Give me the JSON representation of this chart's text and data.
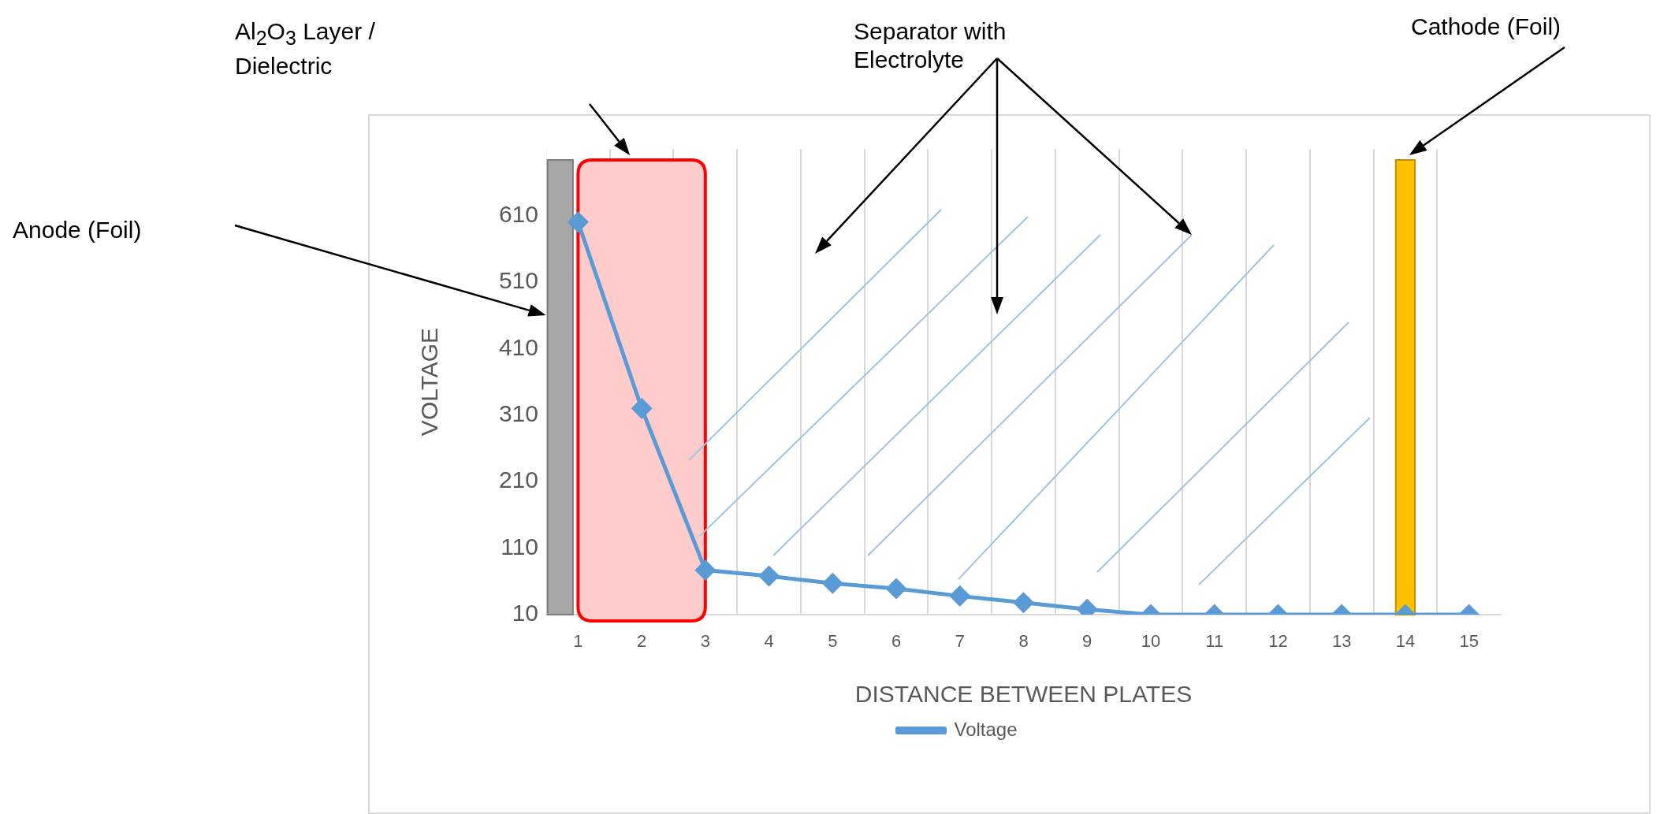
{
  "chart_data": {
    "type": "line",
    "xlabel": "DISTANCE BETWEEN PLATES",
    "ylabel": "VOLTAGE",
    "x": [
      1,
      2,
      3,
      4,
      5,
      6,
      7,
      8,
      9,
      10,
      11,
      12,
      13,
      14,
      15
    ],
    "series": [
      {
        "name": "Voltage",
        "color": "#5b9bd5",
        "values": [
          600,
          320,
          77,
          68,
          57,
          49,
          38,
          28,
          18,
          10,
          10,
          10,
          10,
          10,
          10
        ]
      }
    ],
    "xlim": [
      0.5,
      15.5
    ],
    "xticks": [
      1,
      {
        "value": 1.5,
        "label": null
      },
      2,
      {
        "value": 2.5,
        "label": null
      },
      3,
      {
        "value": 3.5,
        "label": null
      },
      4,
      {
        "value": 4.5,
        "label": null
      },
      5,
      {
        "value": 5.5,
        "label": null
      },
      6,
      {
        "value": 6.5,
        "label": null
      },
      7,
      {
        "value": 7.5,
        "label": null
      },
      8,
      {
        "value": 8.5,
        "label": null
      },
      9,
      {
        "value": 9.5,
        "label": null
      },
      10,
      {
        "value": 10.5,
        "label": null
      },
      11,
      {
        "value": 11.5,
        "label": null
      },
      12,
      {
        "value": 12.5,
        "label": null
      },
      13,
      {
        "value": 13.5,
        "label": null
      },
      14,
      {
        "value": 14.5,
        "label": null
      },
      15
    ],
    "ylim": [
      10,
      710
    ],
    "yticks": [
      10,
      110,
      210,
      310,
      410,
      510,
      610
    ],
    "grid": "x",
    "legend": "bottom",
    "marker": "diamond",
    "line_style": "solid",
    "bands": [
      {
        "axis": "x",
        "from": 0.52,
        "to": 0.92,
        "color": "#a6a6a6"
      },
      {
        "axis": "x",
        "from": 1,
        "to": 3,
        "color": "#ffcccc"
      },
      {
        "axis": "x",
        "from": 13.85,
        "to": 14.15,
        "color": "#ffc000"
      }
    ],
    "annotations": [
      "Anode (Foil)",
      "Al$_{2}$O$_{3}$ Layer / Dielectric",
      "Separator with Electrolyte",
      "Cathode (Foil)"
    ]
  }
}
